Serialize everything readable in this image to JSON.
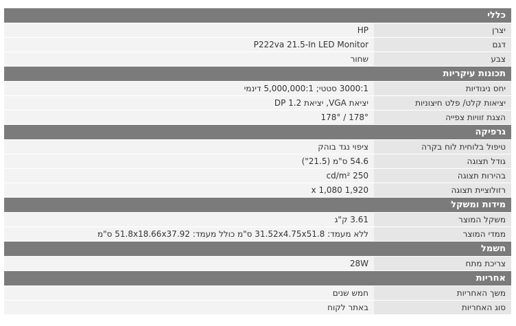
{
  "sections": [
    {
      "title": "כללי",
      "rows": [
        {
          "label": "יצרן",
          "value": "HP"
        },
        {
          "label": "דגם",
          "value": "P222va 21.5-In LED Monitor"
        },
        {
          "label": "צבע",
          "value": "שחור"
        }
      ]
    },
    {
      "title": "תכונות עיקריות",
      "rows": [
        {
          "label": "יחס ניגודיות",
          "value": "3000:1 סטטי; 5,000,000:1 דינמי"
        },
        {
          "label": "יציאות קלט/ פלט חיצוניות",
          "value": "יציאת VGA, יציאת DP 1.2"
        },
        {
          "label": "הצגת זוויות צפייה",
          "value": "178° / 178°"
        }
      ]
    },
    {
      "title": "גרפיקה",
      "rows": [
        {
          "label": "טיפול בלוחית לוח בקרה",
          "value": "ציפוי נגד בוהק"
        },
        {
          "label": "גודל תצוגה",
          "value": "54.6 ס\"מ (21.5\")"
        },
        {
          "label": "בהירות תצוגה",
          "value": "250 cd/m²"
        },
        {
          "label": "רזולוציית תצוגה",
          "value": "1,920 x 1,080"
        }
      ]
    },
    {
      "title": "מידות ומשקל",
      "rows": [
        {
          "label": "משקל המוצר",
          "value": "3.61 ק\"ג"
        },
        {
          "label": "ממדי המוצר",
          "value": "ללא מעמד: 31.52x4.75x51.8 ס\"מ כולל מעמד: 51.8x18.66x37.92 ס\"מ"
        }
      ]
    },
    {
      "title": "חשמל",
      "rows": [
        {
          "label": "צריכת מתח",
          "value": "28W"
        }
      ]
    },
    {
      "title": "אחריות",
      "rows": [
        {
          "label": "משך האחריות",
          "value": "חמש שנים"
        },
        {
          "label": "סוג האחריות",
          "value": "באתר לקוח"
        }
      ]
    }
  ]
}
